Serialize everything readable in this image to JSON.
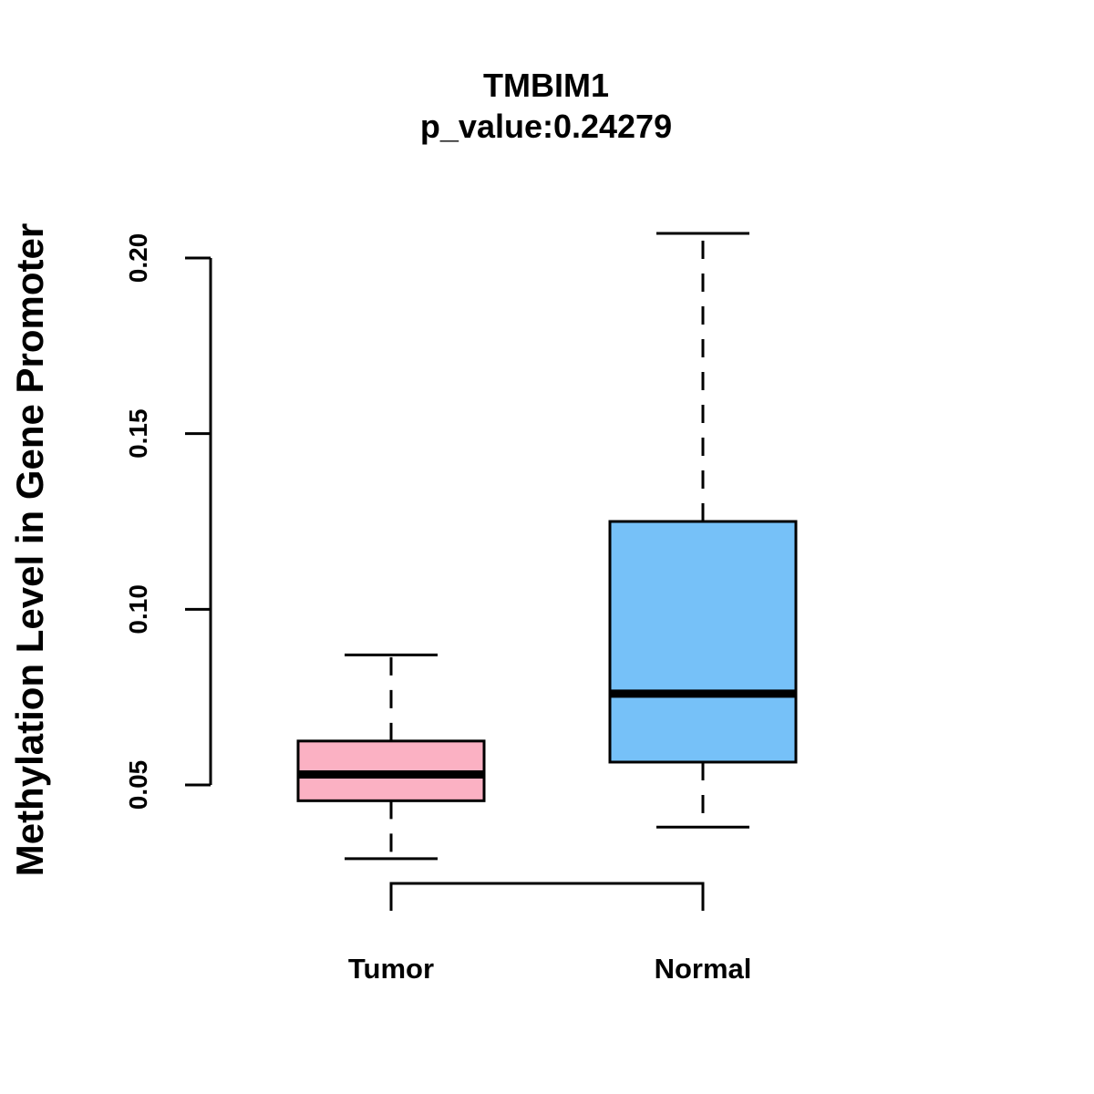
{
  "chart_data": {
    "type": "box",
    "title": "TMBIM1",
    "subtitle": "p_value:0.24279",
    "xlabel": "",
    "ylabel": "Methylation Level in Gene Promoter",
    "ylim": [
      0.05,
      0.2
    ],
    "yticks": [
      0.05,
      0.1,
      0.15,
      0.2
    ],
    "ytick_labels": [
      "0.05",
      "0.10",
      "0.15",
      "0.20"
    ],
    "grid": false,
    "legend": "none",
    "categories": [
      "Tumor",
      "Normal"
    ],
    "boxes": [
      {
        "category": "Tumor",
        "whisker_low": 0.029,
        "q1": 0.0455,
        "median": 0.053,
        "q3": 0.0625,
        "whisker_high": 0.087,
        "color": "#FBB1C3"
      },
      {
        "category": "Normal",
        "whisker_low": 0.038,
        "q1": 0.0565,
        "median": 0.076,
        "q3": 0.125,
        "whisker_high": 0.207,
        "color": "#76C1F8"
      }
    ],
    "comparison_bracket": [
      "Tumor",
      "Normal"
    ]
  }
}
